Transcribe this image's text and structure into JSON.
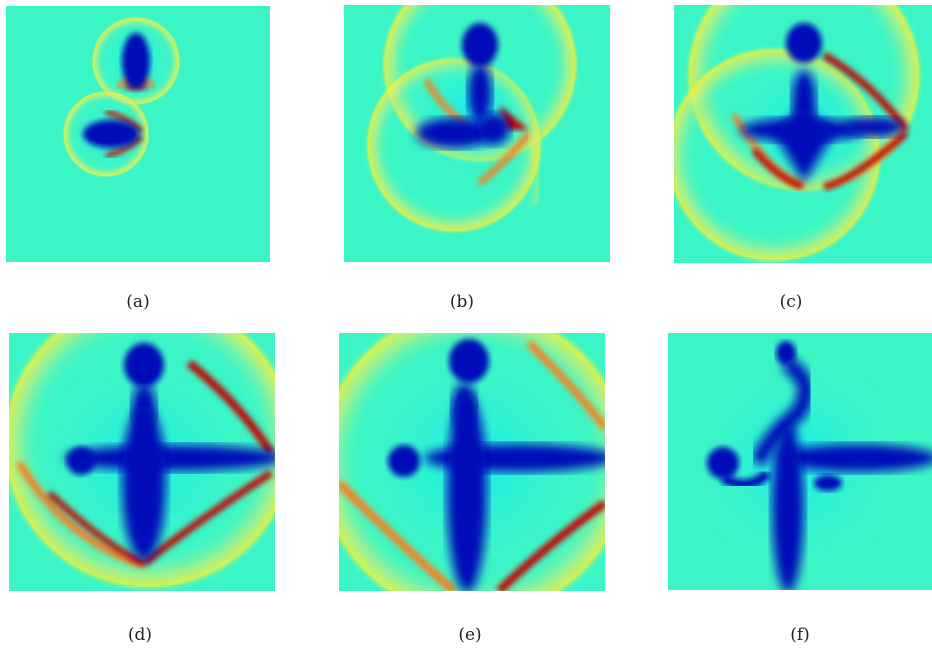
{
  "figure": {
    "panels": [
      {
        "id": "a",
        "caption": "(a)"
      },
      {
        "id": "b",
        "caption": "(b)"
      },
      {
        "id": "c",
        "caption": "(c)"
      },
      {
        "id": "d",
        "caption": "(d)"
      },
      {
        "id": "e",
        "caption": "(e)"
      },
      {
        "id": "f",
        "caption": "(f)"
      }
    ],
    "colors": {
      "background": "#3cf5c6",
      "deep_blue": "#0010b8",
      "cyan": "#15e9f5",
      "yellow": "#f6f03a",
      "orange": "#ff7a1a",
      "red": "#c40000"
    }
  }
}
